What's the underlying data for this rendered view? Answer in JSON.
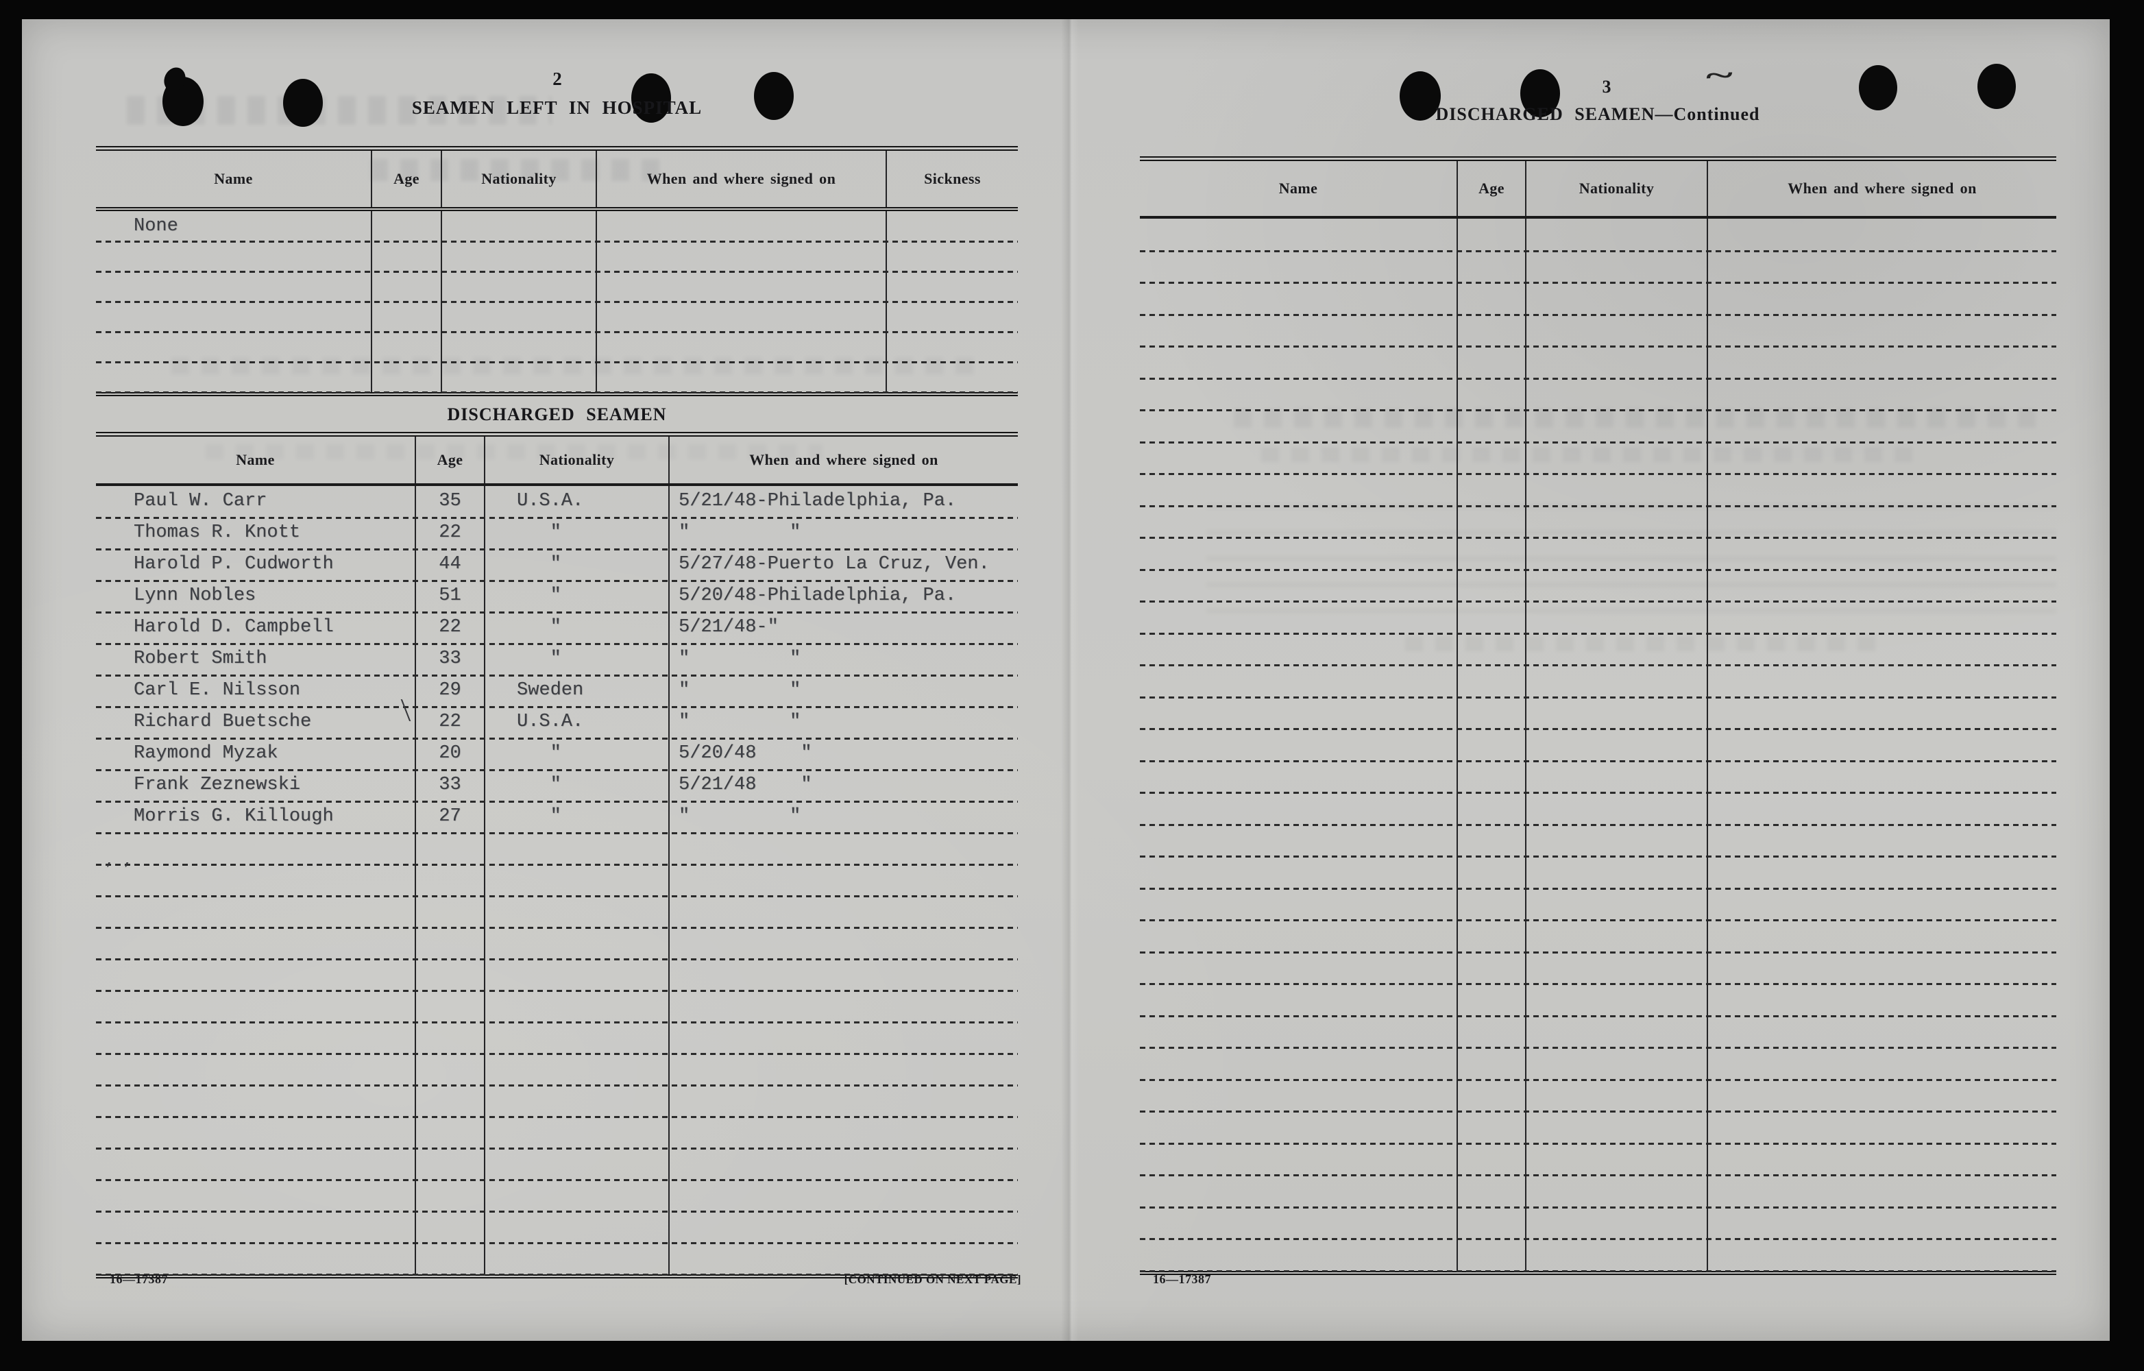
{
  "scan": {
    "paper_color": "#c7c7c5",
    "ink_color": "#1a1a1a",
    "typed_ink_color": "#3c3e43"
  },
  "left_page": {
    "page_number": "2",
    "hospital_table": {
      "title": "SEAMEN LEFT IN HOSPITAL",
      "columns": [
        "Name",
        "Age",
        "Nationality",
        "When and where signed on",
        "Sickness"
      ],
      "rows": [
        {
          "name": "None",
          "age": "",
          "nationality": "",
          "signed_on": "",
          "sickness": ""
        }
      ],
      "empty_row_count": 5
    },
    "discharged_table": {
      "title": "DISCHARGED SEAMEN",
      "columns": [
        "Name",
        "Age",
        "Nationality",
        "When and where signed on"
      ],
      "rows": [
        {
          "name": "Paul W. Carr",
          "age": "35",
          "nationality": "U.S.A.",
          "signed_on": "5/21/48-Philadelphia, Pa."
        },
        {
          "name": "Thomas R. Knott",
          "age": "22",
          "nationality": "   \"",
          "signed_on": "\"         \""
        },
        {
          "name": "Harold P. Cudworth",
          "age": "44",
          "nationality": "   \"",
          "signed_on": "5/27/48-Puerto La Cruz, Ven."
        },
        {
          "name": "Lynn Nobles",
          "age": "51",
          "nationality": "   \"",
          "signed_on": "5/20/48-Philadelphia, Pa."
        },
        {
          "name": "Harold D. Campbell",
          "age": "22",
          "nationality": "   \"",
          "signed_on": "5/21/48-\""
        },
        {
          "name": "Robert Smith",
          "age": "33",
          "nationality": "   \"",
          "signed_on": "\"         \""
        },
        {
          "name": "Carl E. Nilsson",
          "age": "29",
          "nationality": "Sweden",
          "signed_on": "\"         \""
        },
        {
          "name": "Richard Buetsche",
          "age": "22",
          "nationality": "U.S.A.",
          "signed_on": "\"         \""
        },
        {
          "name": "Raymond Myzak",
          "age": "20",
          "nationality": "   \"",
          "signed_on": "5/20/48    \""
        },
        {
          "name": "Frank Zeznewski",
          "age": "33",
          "nationality": "   \"",
          "signed_on": "5/21/48    \""
        },
        {
          "name": "Morris G. Killough",
          "age": "27",
          "nationality": "   \"",
          "signed_on": "\"         \""
        }
      ],
      "empty_row_count": 14
    },
    "stray_marks": {
      "empty_row_ticks": "’  ’",
      "age_pen_stroke": "╲"
    },
    "footer": {
      "form_number": "16—17387",
      "continued_note": "[CONTINUED ON NEXT PAGE]"
    }
  },
  "right_page": {
    "page_number": "3",
    "title": "DISCHARGED SEAMEN—Continued",
    "continuation_table": {
      "columns": [
        "Name",
        "Age",
        "Nationality",
        "When and where signed on"
      ],
      "rows": [],
      "empty_row_count": 33
    },
    "pen_squiggle": "~",
    "footer": {
      "form_number": "16—17387"
    }
  }
}
